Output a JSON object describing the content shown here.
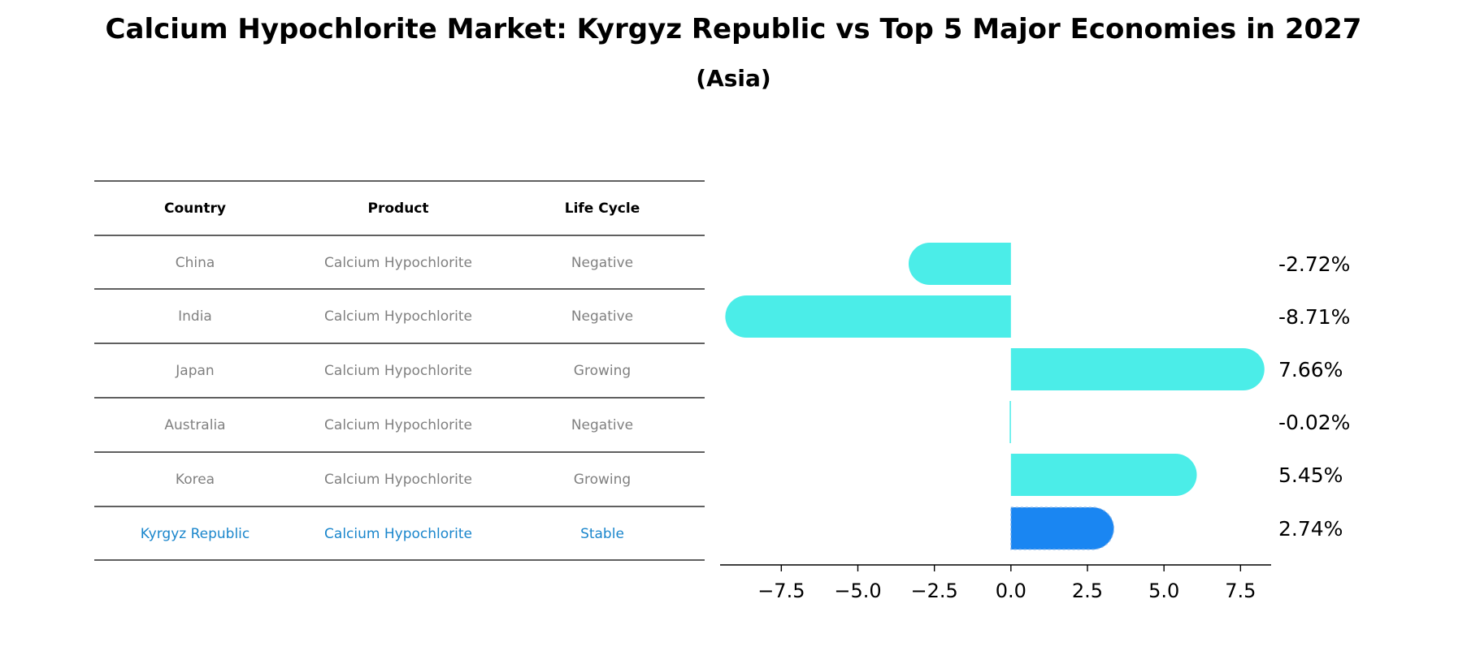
{
  "title": "Calcium Hypochlorite Market: Kyrgyz Republic vs Top 5 Major Economies in 2027",
  "subtitle": "(Asia)",
  "table": {
    "headers": [
      "Country",
      "Product",
      "Life Cycle"
    ],
    "rows": [
      {
        "country": "China",
        "product": "Calcium Hypochlorite",
        "life_cycle": "Negative",
        "highlight": false
      },
      {
        "country": "India",
        "product": "Calcium Hypochlorite",
        "life_cycle": "Negative",
        "highlight": false
      },
      {
        "country": "Japan",
        "product": "Calcium Hypochlorite",
        "life_cycle": "Growing",
        "highlight": false
      },
      {
        "country": "Australia",
        "product": "Calcium Hypochlorite",
        "life_cycle": "Negative",
        "highlight": false
      },
      {
        "country": "Korea",
        "product": "Calcium Hypochlorite",
        "life_cycle": "Growing",
        "highlight": false
      },
      {
        "country": "Kyrgyz Republic",
        "product": "Calcium Hypochlorite",
        "life_cycle": "Stable",
        "highlight": true
      }
    ]
  },
  "colors": {
    "bar": "#4BEDE8",
    "highlight_bar": "#1A86F2",
    "row_text": "#808080",
    "highlight_text": "#1A86CC",
    "header_text": "#000000"
  },
  "chart_data": {
    "type": "bar",
    "orientation": "horizontal",
    "categories": [
      "China",
      "India",
      "Japan",
      "Australia",
      "Korea",
      "Kyrgyz Republic"
    ],
    "values": [
      -2.72,
      -8.71,
      7.66,
      -0.02,
      5.45,
      2.74
    ],
    "labels": [
      "-2.72%",
      "-8.71%",
      "7.66%",
      "-0.02%",
      "5.45%",
      "2.74%"
    ],
    "xticks": [
      -7.5,
      -5.0,
      -2.5,
      0.0,
      2.5,
      5.0,
      7.5
    ],
    "xtick_labels": [
      "−7.5",
      "−5.0",
      "−2.5",
      "0.0",
      "2.5",
      "5.0",
      "7.5"
    ],
    "xlim": [
      -9.5,
      8.5
    ],
    "highlight_index": 5
  }
}
